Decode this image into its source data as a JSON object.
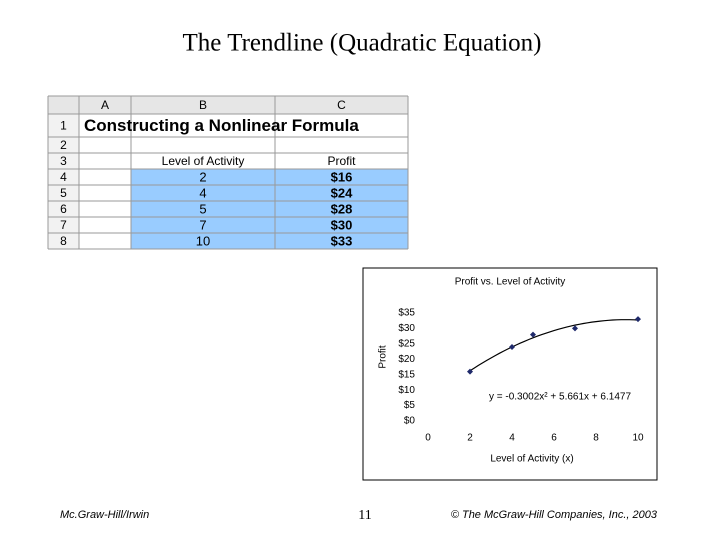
{
  "title": "The Trendline (Quadratic Equation)",
  "spreadsheet": {
    "columns": [
      "A",
      "B",
      "C"
    ],
    "row_numbers": [
      "1",
      "2",
      "3",
      "4",
      "5",
      "6",
      "7",
      "8"
    ],
    "heading": "Constructing a Nonlinear Formula",
    "header": [
      "Level of Activity",
      "Profit"
    ],
    "rows": [
      [
        "2",
        "$16"
      ],
      [
        "4",
        "$24"
      ],
      [
        "5",
        "$28"
      ],
      [
        "7",
        "$30"
      ],
      [
        "10",
        "$33"
      ]
    ]
  },
  "chart_data": {
    "type": "scatter",
    "title": "Profit vs. Level of Activity",
    "x_label": "Level of Activity (x)",
    "y_label": "Profit",
    "x": [
      2,
      4,
      5,
      7,
      10
    ],
    "values": [
      16,
      24,
      28,
      30,
      33
    ],
    "color": "#1f2a6b",
    "xlim": [
      0,
      10
    ],
    "xticks": [
      0,
      2,
      4,
      6,
      8,
      10
    ],
    "ylim": [
      0,
      35
    ],
    "yticks": [
      {
        "value": 0,
        "label": "$0"
      },
      {
        "value": 5,
        "label": "$5"
      },
      {
        "value": 10,
        "label": "$10"
      },
      {
        "value": 15,
        "label": "$15"
      },
      {
        "value": 20,
        "label": "$20"
      },
      {
        "value": 25,
        "label": "$25"
      },
      {
        "value": 30,
        "label": "$30"
      },
      {
        "value": 35,
        "label": "$35"
      }
    ],
    "trendline": {
      "a": -0.3002,
      "b": 5.661,
      "c": 6.1477,
      "label": "y = -0.3002x² + 5.661x + 6.1477"
    }
  },
  "footer": {
    "left": "Mc.Graw-Hill/Irwin",
    "page": "11",
    "right": "© The McGraw-Hill Companies, Inc., 2003"
  }
}
